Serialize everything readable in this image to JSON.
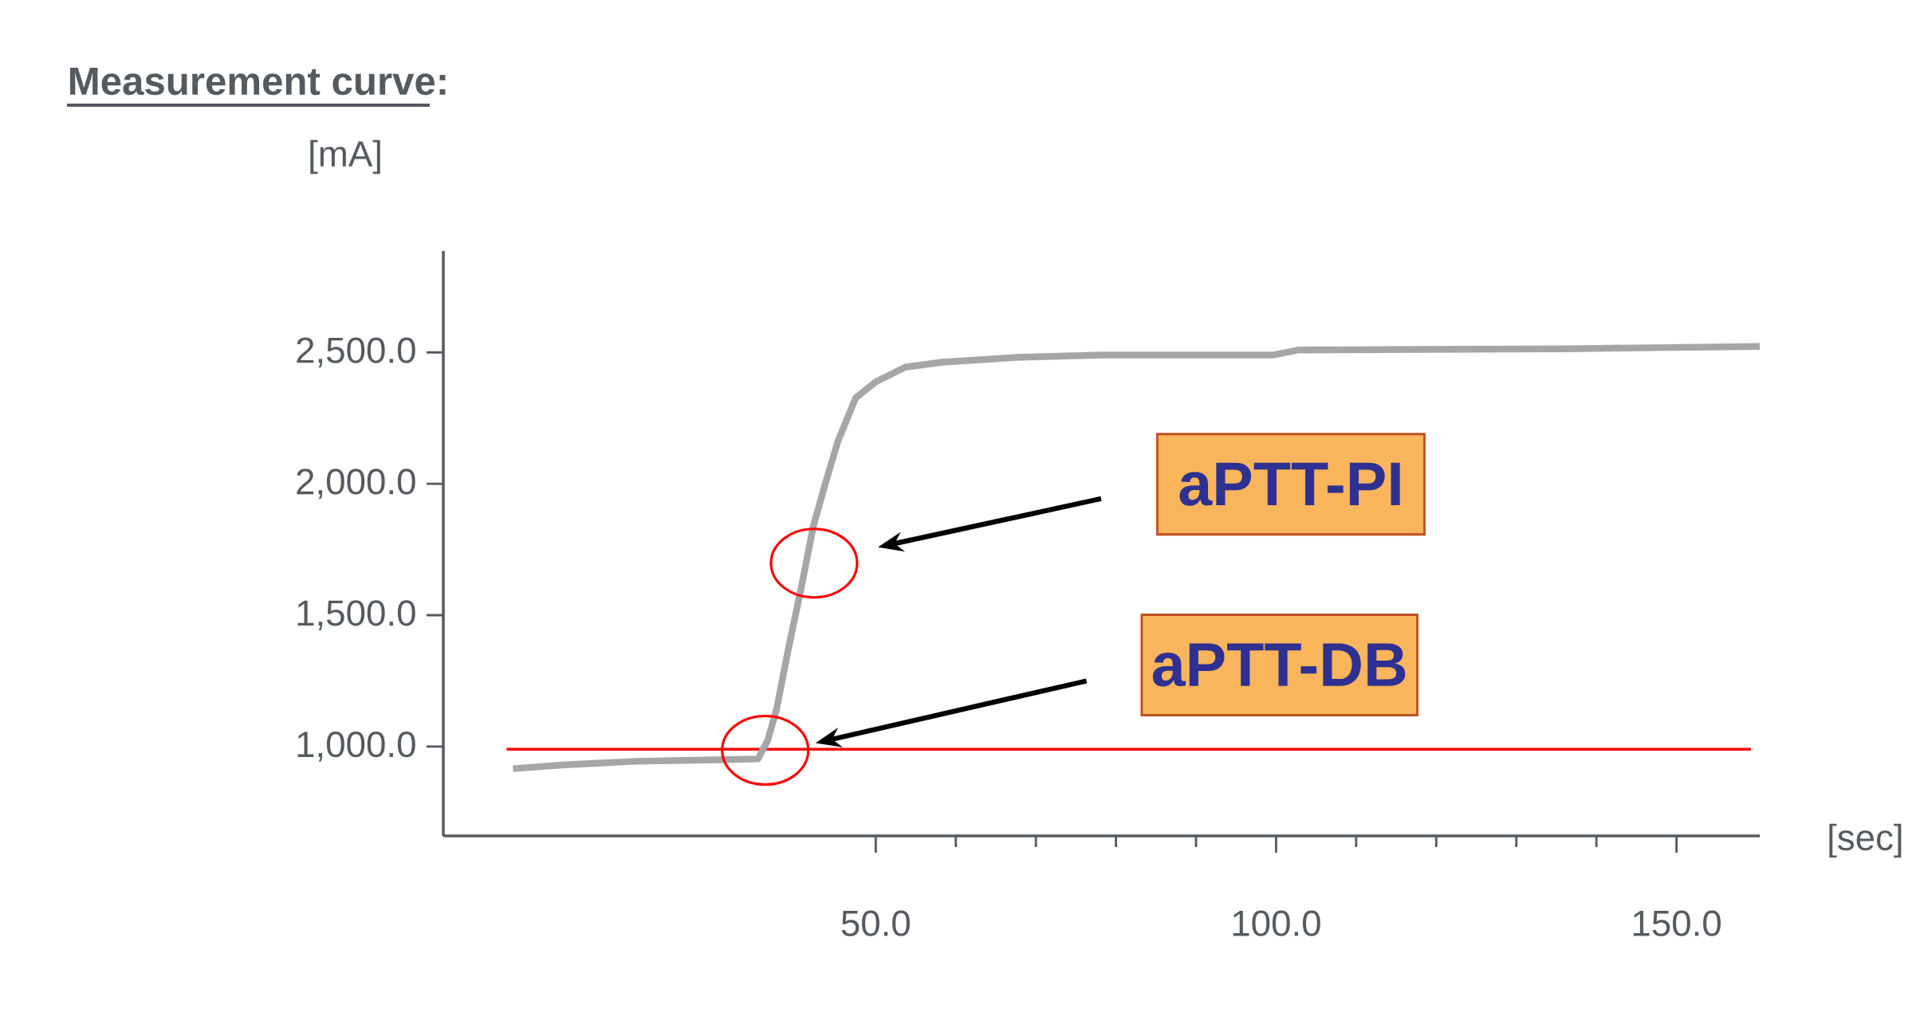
{
  "chart_data": {
    "type": "line",
    "title": "Measurement curve:",
    "ylabel": "[mA]",
    "xlabel": "[sec]",
    "xlim": [
      -4,
      160.4
    ],
    "ylim": [
      660,
      2886
    ],
    "xticks": [
      {
        "value": 50,
        "label": "50.0"
      },
      {
        "value": 100,
        "label": "100.0"
      },
      {
        "value": 150,
        "label": "150.0"
      }
    ],
    "yticks": [
      {
        "value": 1000,
        "label": "1,000.0"
      },
      {
        "value": 1500,
        "label": "1,500.0"
      },
      {
        "value": 2000,
        "label": "2,000.0"
      },
      {
        "value": 2500,
        "label": "2,500.0"
      }
    ],
    "series": [
      {
        "color": "#a6a6a6",
        "x": [
          4.7,
          10.8,
          20,
          29,
          35.3,
          36.5,
          37.6,
          39.1,
          40.7,
          42.2,
          43.7,
          45.3,
          47.5,
          50,
          53.7,
          58.3,
          67.5,
          78.2,
          99.6,
          102.7,
          136.4,
          160.4
        ],
        "values": [
          916,
          930,
          944,
          949,
          953,
          1023,
          1140,
          1373,
          1605,
          1838,
          2001,
          2164,
          2327,
          2388,
          2444,
          2463,
          2481,
          2490,
          2490,
          2509,
          2514,
          2523
        ]
      }
    ],
    "ref_lines": [
      {
        "axis": "y",
        "value": 990,
        "color": "#ff0000"
      }
    ],
    "annotations": [
      "aPTT-PI",
      "aPTT-DB"
    ],
    "marker": "none",
    "line_style": "solid",
    "grid": false
  }
}
